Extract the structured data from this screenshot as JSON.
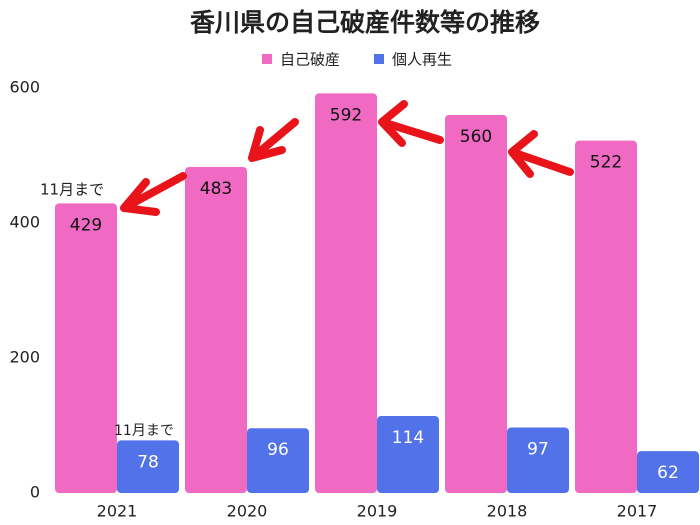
{
  "chart_data": {
    "type": "bar",
    "title": "香川県の自己破産件数等の推移",
    "categories": [
      "2021",
      "2020",
      "2019",
      "2018",
      "2017"
    ],
    "series": [
      {
        "name": "自己破産",
        "color": "#f06ac3",
        "values": [
          429,
          483,
          592,
          560,
          522
        ]
      },
      {
        "name": "個人再生",
        "color": "#5272ea",
        "values": [
          78,
          96,
          114,
          97,
          62
        ]
      }
    ],
    "ylim": [
      0,
      600
    ],
    "yticks": [
      0,
      200,
      400,
      600
    ],
    "grid": false,
    "annotations": [
      "11月まで",
      "11月まで"
    ]
  }
}
